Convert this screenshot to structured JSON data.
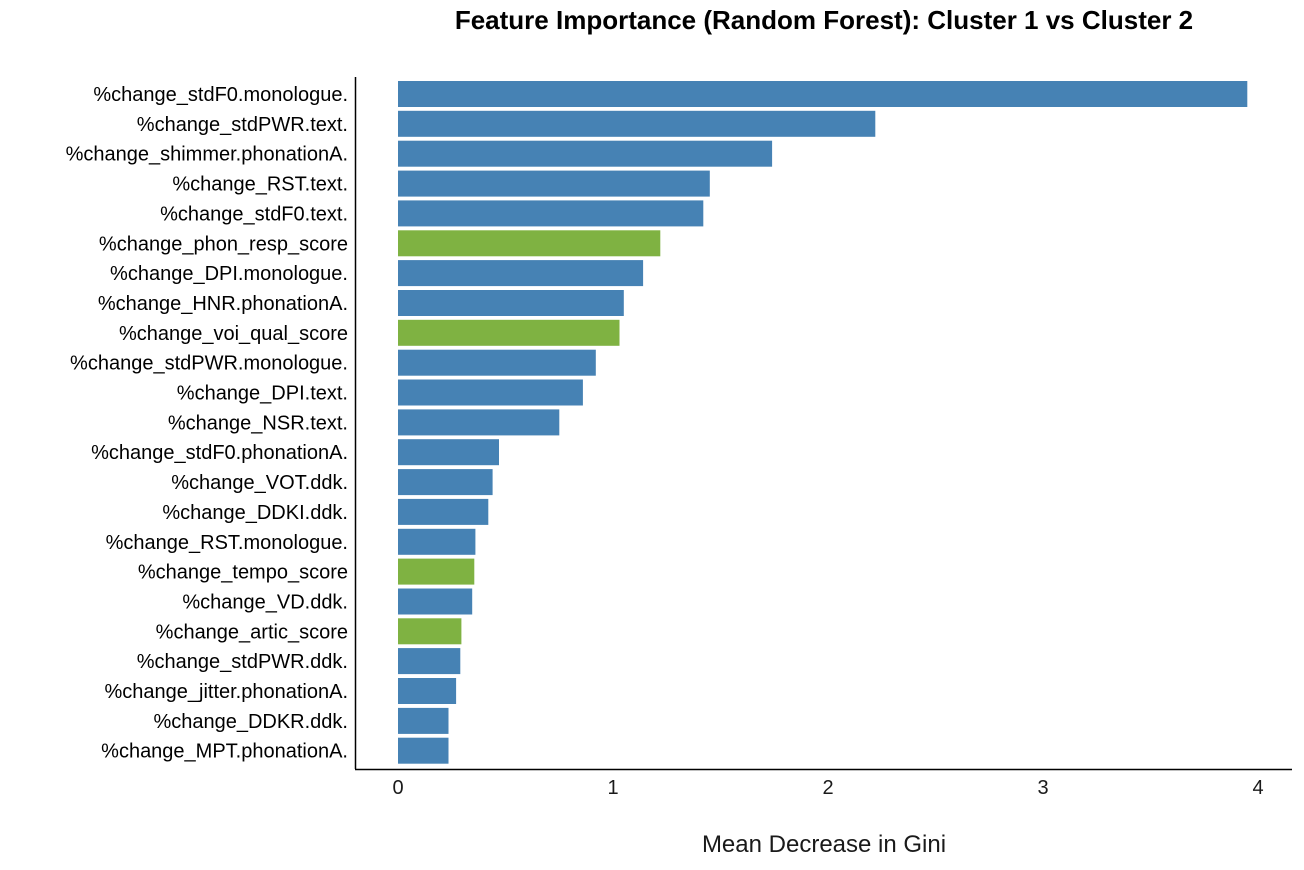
{
  "chart_data": {
    "type": "bar",
    "orientation": "horizontal",
    "title": "Feature Importance (Random Forest): Cluster 1 vs Cluster 2",
    "xlabel": "Mean Decrease in Gini",
    "ylabel": "",
    "xlim": [
      0,
      4.15
    ],
    "xticks": [
      0,
      1,
      2,
      3,
      4
    ],
    "grid": false,
    "legend": "none",
    "colors": {
      "acoustic": "#4682b4",
      "score": "#7fb242"
    },
    "categories": [
      "%change_stdF0.monologue.",
      "%change_stdPWR.text.",
      "%change_shimmer.phonationA.",
      "%change_RST.text.",
      "%change_stdF0.text.",
      "%change_phon_resp_score",
      "%change_DPI.monologue.",
      "%change_HNR.phonationA.",
      "%change_voi_qual_score",
      "%change_stdPWR.monologue.",
      "%change_DPI.text.",
      "%change_NSR.text.",
      "%change_stdF0.phonationA.",
      "%change_VOT.ddk.",
      "%change_DDKI.ddk.",
      "%change_RST.monologue.",
      "%change_tempo_score",
      "%change_VD.ddk.",
      "%change_artic_score",
      "%change_stdPWR.ddk.",
      "%change_jitter.phonationA.",
      "%change_DDKR.ddk.",
      "%change_MPT.phonationA."
    ],
    "values": [
      3.95,
      2.22,
      1.74,
      1.45,
      1.42,
      1.22,
      1.14,
      1.05,
      1.03,
      0.92,
      0.86,
      0.75,
      0.47,
      0.44,
      0.42,
      0.36,
      0.355,
      0.345,
      0.295,
      0.29,
      0.27,
      0.235,
      0.235
    ],
    "groups": [
      "acoustic",
      "acoustic",
      "acoustic",
      "acoustic",
      "acoustic",
      "score",
      "acoustic",
      "acoustic",
      "score",
      "acoustic",
      "acoustic",
      "acoustic",
      "acoustic",
      "acoustic",
      "acoustic",
      "acoustic",
      "score",
      "acoustic",
      "score",
      "acoustic",
      "acoustic",
      "acoustic",
      "acoustic"
    ]
  }
}
